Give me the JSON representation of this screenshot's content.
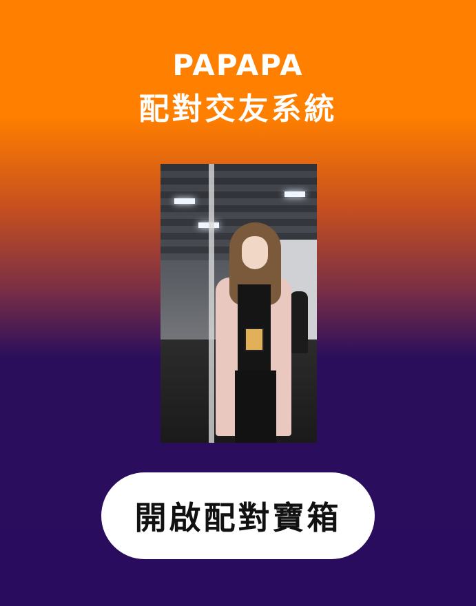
{
  "header": {
    "title_line1": "PAPAPA",
    "title_line2": "配對交友系統"
  },
  "profile": {
    "photo_icon": "profile-photo"
  },
  "cta": {
    "label": "開啟配對寶箱"
  },
  "colors": {
    "top_background": "#ff7f00",
    "bottom_background": "#2a0c5e",
    "button_background": "#ffffff",
    "button_text": "#111111"
  }
}
